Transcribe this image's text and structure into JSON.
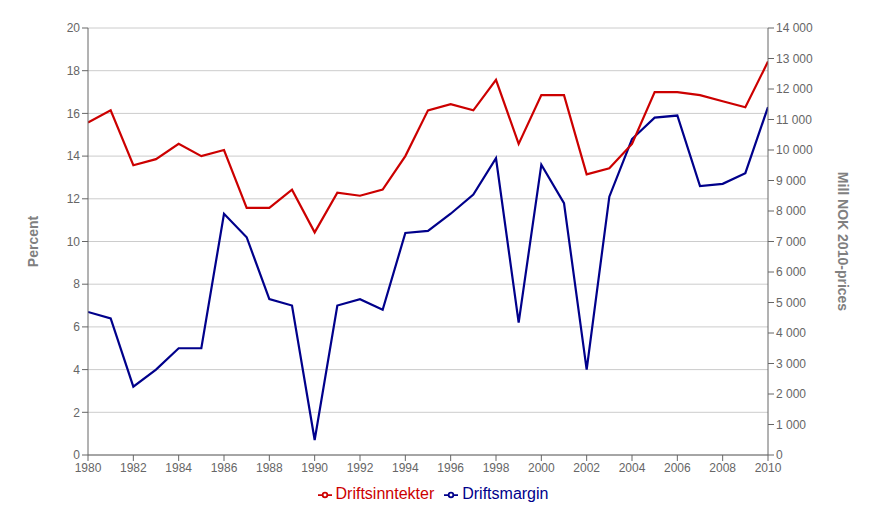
{
  "chart_data": {
    "type": "line",
    "ylabel": "Percent",
    "y2label": "Mill NOK 2010-prices",
    "x": [
      1980,
      1981,
      1982,
      1983,
      1984,
      1985,
      1986,
      1987,
      1988,
      1989,
      1990,
      1991,
      1992,
      1993,
      1994,
      1995,
      1996,
      1997,
      1998,
      1999,
      2000,
      2001,
      2002,
      2003,
      2004,
      2005,
      2006,
      2007,
      2008,
      2009,
      2010
    ],
    "series": [
      {
        "name": "Driftsmargin",
        "color": "#00008B",
        "values": [
          6.7,
          6.4,
          3.2,
          4.0,
          5.0,
          5.0,
          11.3,
          10.2,
          7.3,
          7.0,
          0.7,
          7.0,
          7.3,
          6.8,
          10.4,
          10.5,
          11.3,
          12.2,
          13.9,
          6.2,
          13.6,
          11.8,
          4.0,
          12.1,
          14.8,
          15.8,
          15.9,
          12.6,
          12.7,
          13.2,
          16.3
        ]
      },
      {
        "name": "Driftsinntekter",
        "color": "#CC0000",
        "axis": "y2",
        "values": [
          10900,
          11300,
          9500,
          9700,
          10200,
          9800,
          10000,
          8100,
          8100,
          8700,
          7300,
          8600,
          8500,
          8700,
          9800,
          11300,
          11500,
          11300,
          12300,
          10200,
          11800,
          11800,
          9200,
          9400,
          10200,
          11900,
          11900,
          11800,
          11600,
          11400,
          12900
        ]
      }
    ],
    "xlim": [
      1980,
      2010
    ],
    "xticks": [
      1980,
      1982,
      1984,
      1986,
      1988,
      1990,
      1992,
      1994,
      1996,
      1998,
      2000,
      2002,
      2004,
      2006,
      2008,
      2010
    ],
    "ylim": [
      0,
      20
    ],
    "yticks": [
      0,
      2,
      4,
      6,
      8,
      10,
      12,
      14,
      16,
      18,
      20
    ],
    "y2lim": [
      0,
      14000
    ],
    "y2ticks": [
      0,
      {
        "value": 1000,
        "label": "1 000"
      },
      {
        "value": 2000,
        "label": "2 000"
      },
      {
        "value": 3000,
        "label": "3 000"
      },
      {
        "value": 4000,
        "label": "4 000"
      },
      {
        "value": 5000,
        "label": "5 000"
      },
      {
        "value": 6000,
        "label": "6 000"
      },
      {
        "value": 7000,
        "label": "7 000"
      },
      {
        "value": 8000,
        "label": "8 000"
      },
      {
        "value": 9000,
        "label": "9 000"
      },
      {
        "value": 10000,
        "label": "10 000"
      },
      {
        "value": 11000,
        "label": "11 000"
      },
      {
        "value": 12000,
        "label": "12 000"
      },
      {
        "value": 13000,
        "label": "13 000"
      },
      {
        "value": 14000,
        "label": "14 000"
      }
    ],
    "grid": true,
    "legend": "bottom"
  }
}
